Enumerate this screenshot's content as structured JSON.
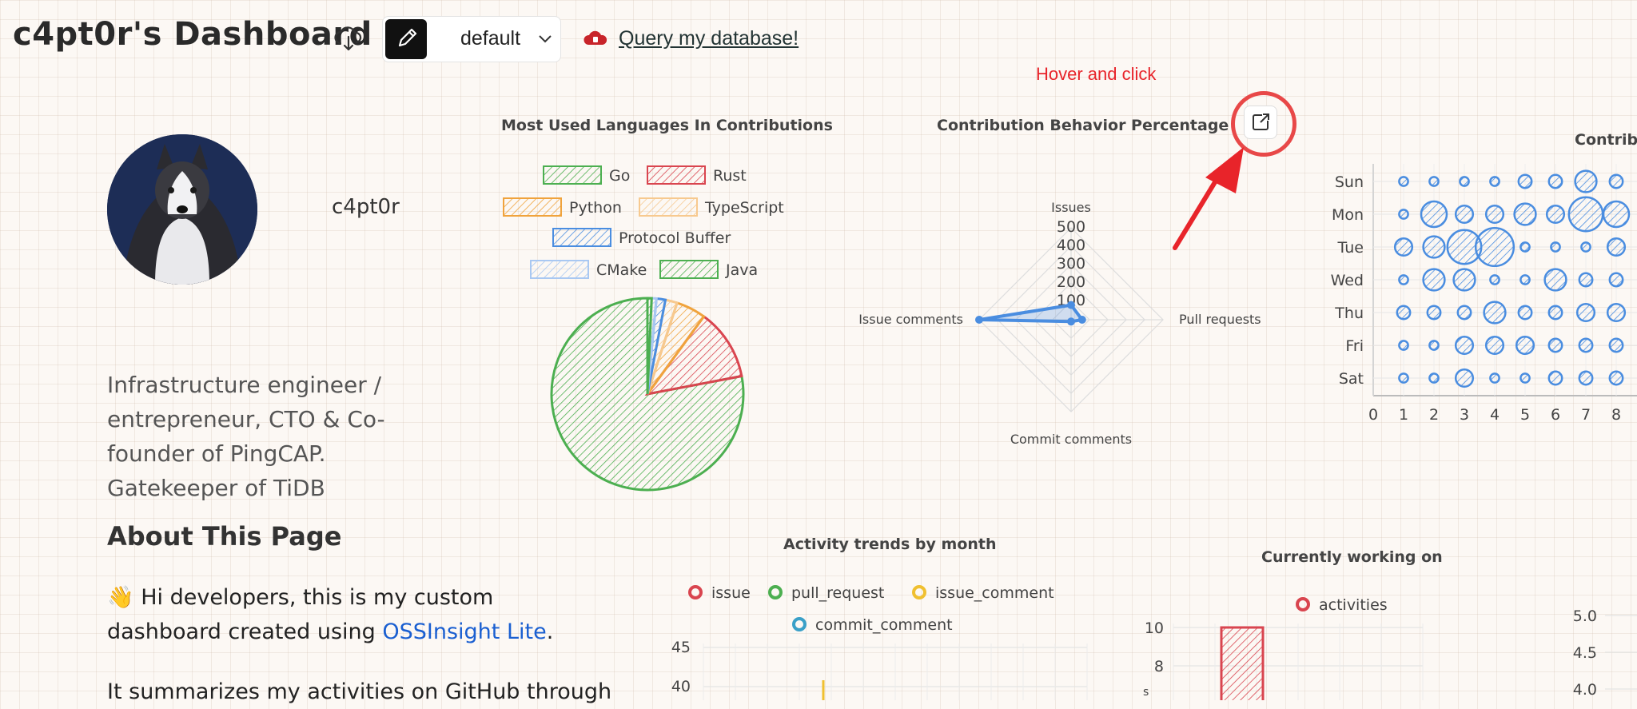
{
  "header": {
    "title": "c4pt0r's Dashboard",
    "theme_select": {
      "selected": "default"
    },
    "query_link": "Query my database!",
    "hover_note": "Hover and click"
  },
  "icons": {
    "download": "cloud-download-icon",
    "edit": "pencil-icon",
    "chevron": "chevron-down-icon",
    "database": "cloud-database-icon",
    "open_external": "external-link-icon",
    "arrow": "red-arrow-annotation"
  },
  "colors": {
    "annotation_red": "#e8242a",
    "link_blue": "#1a5fd1",
    "go_green": "#4caf50",
    "rust_red": "#d9454f",
    "python_orange": "#f0a33c",
    "typescript_peach": "#f7c98f",
    "protobuf_blue": "#4a8de0",
    "cmake_lightblue": "#a9c8f2",
    "radar_blue": "#4a8de0"
  },
  "profile": {
    "username": "c4pt0r",
    "bio": "Infrastructure engineer / entrepreneur, CTO & Co-founder of PingCAP. Gatekeeper of TiDB"
  },
  "about": {
    "heading": "About This Page",
    "p1_prefix": "👋 Hi developers, this is my custom dashboard created using ",
    "p1_link": "OSSInsight Lite",
    "p1_suffix": ".",
    "p2": "It summarizes my activities on GitHub through"
  },
  "chart_data": [
    {
      "type": "pie",
      "title": "Most Used Languages In Contributions",
      "legend": [
        "Go",
        "Rust",
        "Python",
        "TypeScript",
        "Protocol Buffer",
        "CMake",
        "Java"
      ],
      "values": [
        78,
        12,
        5,
        2,
        1.5,
        0.8,
        0.7
      ],
      "colors": [
        "#4caf50",
        "#d9454f",
        "#f0a33c",
        "#f7c98f",
        "#4a8de0",
        "#a9c8f2",
        "#4caf50"
      ]
    },
    {
      "type": "radar",
      "title": "Contribution Behavior Percentage",
      "axes": [
        "Issues",
        "Pull requests",
        "Commit comments",
        "Issue comments"
      ],
      "ticks": [
        "500",
        "400",
        "300",
        "200",
        "100"
      ],
      "values": [
        80,
        60,
        10,
        500
      ],
      "max": 500
    },
    {
      "type": "scatter",
      "title": "Contribu",
      "y_categories": [
        "Sun",
        "Mon",
        "Tue",
        "Wed",
        "Thu",
        "Fri",
        "Sat"
      ],
      "x_ticks": [
        "0",
        "1",
        "2",
        "3",
        "4",
        "5",
        "6",
        "7",
        "8"
      ],
      "points": [
        [
          "Sun",
          1,
          1
        ],
        [
          "Sun",
          2,
          1
        ],
        [
          "Sun",
          3,
          1
        ],
        [
          "Sun",
          4,
          1
        ],
        [
          "Sun",
          5,
          2
        ],
        [
          "Sun",
          6,
          2
        ],
        [
          "Sun",
          7,
          4
        ],
        [
          "Sun",
          8,
          2
        ],
        [
          "Mon",
          1,
          1
        ],
        [
          "Mon",
          2,
          5
        ],
        [
          "Mon",
          3,
          3
        ],
        [
          "Mon",
          4,
          3
        ],
        [
          "Mon",
          5,
          4
        ],
        [
          "Mon",
          6,
          3
        ],
        [
          "Mon",
          7,
          7
        ],
        [
          "Mon",
          8,
          5
        ],
        [
          "Tue",
          1,
          3
        ],
        [
          "Tue",
          2,
          4
        ],
        [
          "Tue",
          3,
          7
        ],
        [
          "Tue",
          4,
          8
        ],
        [
          "Tue",
          5,
          1
        ],
        [
          "Tue",
          6,
          1
        ],
        [
          "Tue",
          7,
          1
        ],
        [
          "Tue",
          8,
          3
        ],
        [
          "Wed",
          1,
          1
        ],
        [
          "Wed",
          2,
          4
        ],
        [
          "Wed",
          3,
          4
        ],
        [
          "Wed",
          4,
          1
        ],
        [
          "Wed",
          5,
          1
        ],
        [
          "Wed",
          6,
          4
        ],
        [
          "Wed",
          7,
          2
        ],
        [
          "Wed",
          8,
          2
        ],
        [
          "Thu",
          1,
          2
        ],
        [
          "Thu",
          2,
          2
        ],
        [
          "Thu",
          3,
          2
        ],
        [
          "Thu",
          4,
          4
        ],
        [
          "Thu",
          5,
          2
        ],
        [
          "Thu",
          6,
          2
        ],
        [
          "Thu",
          7,
          3
        ],
        [
          "Thu",
          8,
          3
        ],
        [
          "Fri",
          1,
          1
        ],
        [
          "Fri",
          2,
          1
        ],
        [
          "Fri",
          3,
          3
        ],
        [
          "Fri",
          4,
          3
        ],
        [
          "Fri",
          5,
          3
        ],
        [
          "Fri",
          6,
          2
        ],
        [
          "Fri",
          7,
          2
        ],
        [
          "Fri",
          8,
          2
        ],
        [
          "Sat",
          1,
          1
        ],
        [
          "Sat",
          2,
          1
        ],
        [
          "Sat",
          3,
          3
        ],
        [
          "Sat",
          4,
          1
        ],
        [
          "Sat",
          5,
          1
        ],
        [
          "Sat",
          6,
          2
        ],
        [
          "Sat",
          7,
          2
        ],
        [
          "Sat",
          8,
          2
        ]
      ]
    },
    {
      "type": "line",
      "title": "Activity trends by month",
      "legend": [
        "issue",
        "pull_request",
        "issue_comment",
        "commit_comment"
      ],
      "legend_colors": [
        "#d9454f",
        "#4caf50",
        "#f0c030",
        "#3aa0c8"
      ],
      "y_ticks": [
        "45",
        "40"
      ]
    },
    {
      "type": "bar",
      "title": "Currently working on",
      "legend": [
        "activities"
      ],
      "y_ticks": [
        "10",
        "8"
      ],
      "bars": [
        10
      ]
    },
    {
      "type": "bar",
      "title": "",
      "y_ticks": [
        "5.0",
        "4.5",
        "4.0"
      ]
    }
  ]
}
